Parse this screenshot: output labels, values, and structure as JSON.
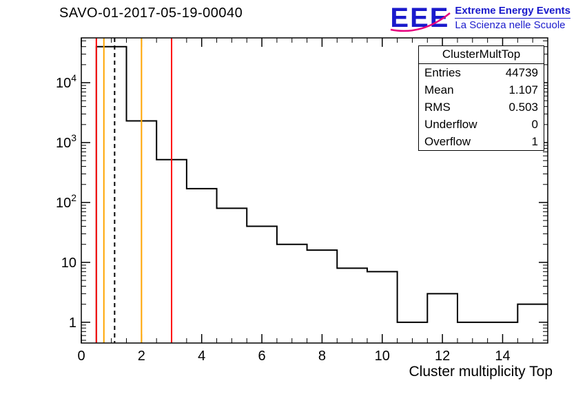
{
  "title": "SAVO-01-2017-05-19-00040",
  "logo": {
    "acronym": "EEE",
    "line1": "Extreme Energy Events",
    "line2": "La Scienza nelle Scuole",
    "blue": "#1a1acc",
    "magenta": "#e6007e"
  },
  "stats_box": {
    "title": "ClusterMultTop",
    "rows": [
      {
        "label": "Entries",
        "value": "44739"
      },
      {
        "label": "Mean",
        "value": "1.107"
      },
      {
        "label": "RMS",
        "value": "0.503"
      },
      {
        "label": "Underflow",
        "value": "0"
      },
      {
        "label": "Overflow",
        "value": "1"
      }
    ]
  },
  "chart_data": {
    "type": "bar",
    "style": "step-histogram",
    "title": "SAVO-01-2017-05-19-00040",
    "xlabel": "Cluster multiplicity Top",
    "ylabel": "",
    "y_scale": "log",
    "x_range": [
      0,
      15.5
    ],
    "y_range": [
      0.45,
      56000
    ],
    "bin_width": 1,
    "bin_centers": [
      1,
      2,
      3,
      4,
      5,
      6,
      7,
      8,
      9,
      10,
      11,
      12,
      13,
      14,
      15
    ],
    "counts": [
      40000,
      2300,
      520,
      170,
      80,
      40,
      20,
      16,
      8,
      7,
      1,
      3,
      1,
      1,
      2
    ],
    "x_ticks": [
      0,
      2,
      4,
      6,
      8,
      10,
      12,
      14
    ],
    "y_ticks": [
      1,
      10,
      100,
      1000,
      10000
    ],
    "line_color": "#000000",
    "marker_lines": [
      {
        "x": 0.5,
        "color": "#ff0000",
        "style": "solid"
      },
      {
        "x": 0.75,
        "color": "#ffa500",
        "style": "solid"
      },
      {
        "x": 1.107,
        "color": "#000000",
        "style": "dashed"
      },
      {
        "x": 2,
        "color": "#ffa500",
        "style": "solid"
      },
      {
        "x": 3,
        "color": "#ff0000",
        "style": "solid"
      }
    ]
  }
}
